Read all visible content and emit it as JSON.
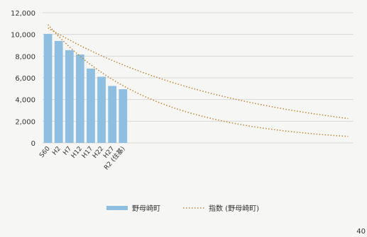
{
  "chart_data": {
    "type": "bar",
    "categories": [
      "S60",
      "H2",
      "H7",
      "H12",
      "H17",
      "H22",
      "H27",
      "R2 (住基)"
    ],
    "series": [
      {
        "name": "野母崎町",
        "type": "bar",
        "values": [
          10050,
          9400,
          8550,
          8150,
          6850,
          6100,
          5250,
          4950
        ]
      }
    ],
    "trend_lines": [
      {
        "name": "指数 (野母崎町)",
        "style": "dotted",
        "x": [
          0,
          28
        ],
        "y_start": 10900,
        "y_end": 600
      },
      {
        "name": "指数 (野母崎町)",
        "style": "dotted",
        "x": [
          0,
          28
        ],
        "y_start": 10600,
        "y_end": 2250
      }
    ],
    "x_extent_categories": 29,
    "y_ticks": [
      "0",
      "2,000",
      "4,000",
      "6,000",
      "8,000",
      "10,000",
      "12,000"
    ],
    "ylim": [
      0,
      12000
    ],
    "legend": {
      "position": "bottom",
      "items": [
        "野母崎町",
        "指数 (野母崎町)"
      ]
    },
    "colors": {
      "bar": "#8fbfe0",
      "trend": "#c48a40",
      "grid": "#d8d8d8"
    },
    "grid": true
  },
  "page_number": "40"
}
